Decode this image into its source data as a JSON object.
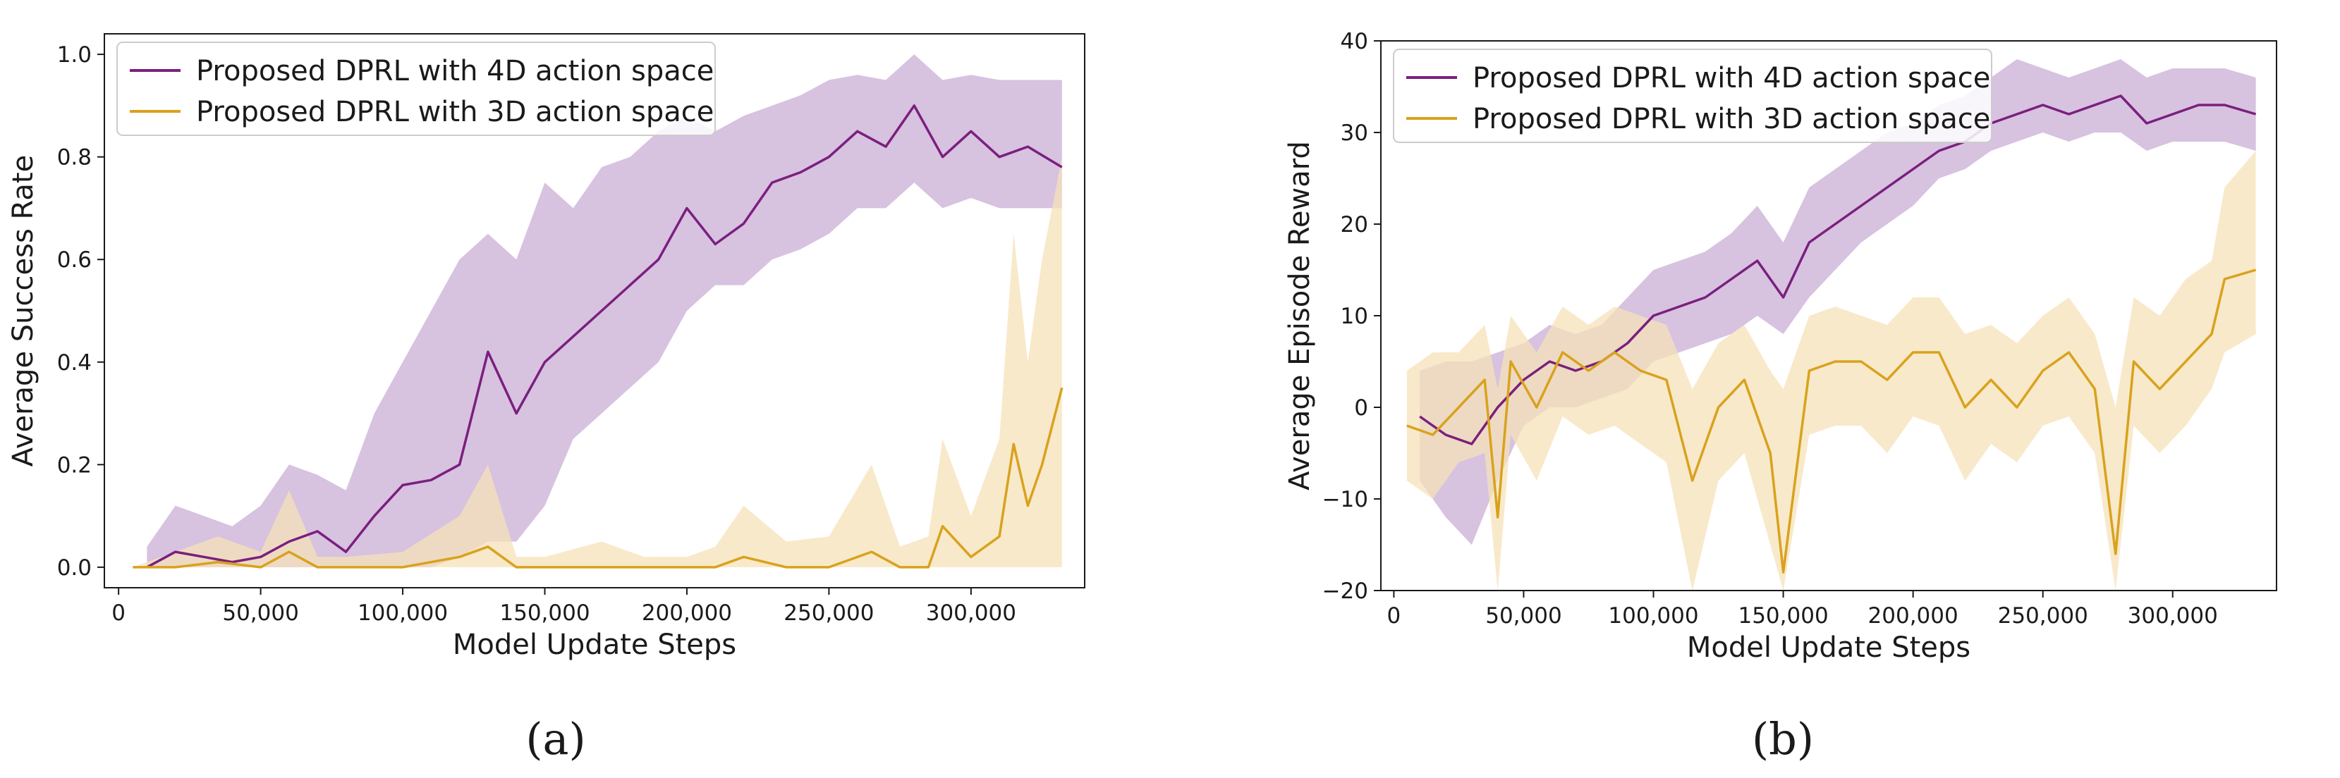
{
  "colors": {
    "purple": "#7b1f7e",
    "gold": "#d9a21d",
    "purple_band": "#c9aed6",
    "gold_band": "#f5e2b8"
  },
  "panels": [
    {
      "caption": "(a)"
    },
    {
      "caption": "(b)"
    }
  ],
  "chart_data": [
    {
      "type": "line",
      "title": "",
      "xlabel": "Model Update Steps",
      "ylabel": "Average Success Rate",
      "xlim": [
        -5000,
        340000
      ],
      "ylim": [
        -0.04,
        1.04
      ],
      "xticks": [
        0,
        50000,
        100000,
        150000,
        200000,
        250000,
        300000
      ],
      "xtick_labels": [
        "0",
        "50,000",
        "100,000",
        "150,000",
        "200,000",
        "250,000",
        "300,000"
      ],
      "yticks": [
        0.0,
        0.2,
        0.4,
        0.6,
        0.8,
        1.0
      ],
      "ytick_labels": [
        "0.0",
        "0.2",
        "0.4",
        "0.6",
        "0.8",
        "1.0"
      ],
      "legend_position": "top-left",
      "series": [
        {
          "name": "Proposed DPRL with 4D action space",
          "color": "#7b1f7e",
          "x": [
            10000,
            20000,
            30000,
            40000,
            50000,
            60000,
            70000,
            80000,
            90000,
            100000,
            110000,
            120000,
            130000,
            140000,
            150000,
            160000,
            170000,
            180000,
            190000,
            200000,
            210000,
            220000,
            230000,
            240000,
            250000,
            260000,
            270000,
            280000,
            290000,
            300000,
            310000,
            320000,
            332000
          ],
          "y": [
            0.0,
            0.03,
            0.02,
            0.01,
            0.02,
            0.05,
            0.07,
            0.03,
            0.1,
            0.16,
            0.17,
            0.2,
            0.42,
            0.3,
            0.4,
            0.45,
            0.5,
            0.55,
            0.6,
            0.7,
            0.63,
            0.67,
            0.75,
            0.77,
            0.8,
            0.85,
            0.82,
            0.9,
            0.8,
            0.85,
            0.8,
            0.82,
            0.78
          ],
          "lower": [
            0.0,
            0.0,
            0.0,
            0.0,
            0.0,
            0.0,
            0.0,
            0.0,
            0.0,
            0.0,
            0.0,
            0.02,
            0.05,
            0.05,
            0.12,
            0.25,
            0.3,
            0.35,
            0.4,
            0.5,
            0.55,
            0.55,
            0.6,
            0.62,
            0.65,
            0.7,
            0.7,
            0.75,
            0.7,
            0.72,
            0.7,
            0.7,
            0.7
          ],
          "upper": [
            0.04,
            0.12,
            0.1,
            0.08,
            0.12,
            0.2,
            0.18,
            0.15,
            0.3,
            0.4,
            0.5,
            0.6,
            0.65,
            0.6,
            0.75,
            0.7,
            0.78,
            0.8,
            0.85,
            0.88,
            0.85,
            0.88,
            0.9,
            0.92,
            0.95,
            0.96,
            0.95,
            1.0,
            0.95,
            0.96,
            0.95,
            0.95,
            0.95
          ]
        },
        {
          "name": "Proposed DPRL with 3D action space",
          "color": "#d9a21d",
          "x": [
            5000,
            20000,
            35000,
            50000,
            60000,
            70000,
            80000,
            100000,
            120000,
            130000,
            140000,
            150000,
            170000,
            185000,
            200000,
            210000,
            220000,
            235000,
            250000,
            265000,
            275000,
            285000,
            290000,
            300000,
            310000,
            315000,
            320000,
            325000,
            332000
          ],
          "y": [
            0.0,
            0.0,
            0.01,
            0.0,
            0.03,
            0.0,
            0.0,
            0.0,
            0.02,
            0.04,
            0.0,
            0.0,
            0.0,
            0.0,
            0.0,
            0.0,
            0.02,
            0.0,
            0.0,
            0.03,
            0.0,
            0.0,
            0.08,
            0.02,
            0.06,
            0.24,
            0.12,
            0.2,
            0.35
          ],
          "lower": [
            0.0,
            0.0,
            0.0,
            0.0,
            0.0,
            0.0,
            0.0,
            0.0,
            0.0,
            0.0,
            0.0,
            0.0,
            0.0,
            0.0,
            0.0,
            0.0,
            0.0,
            0.0,
            0.0,
            0.0,
            0.0,
            0.0,
            0.0,
            0.0,
            0.0,
            0.0,
            0.0,
            0.0,
            0.0
          ],
          "upper": [
            0.0,
            0.03,
            0.06,
            0.03,
            0.15,
            0.02,
            0.02,
            0.03,
            0.1,
            0.2,
            0.02,
            0.02,
            0.05,
            0.02,
            0.02,
            0.04,
            0.12,
            0.05,
            0.06,
            0.2,
            0.04,
            0.06,
            0.25,
            0.1,
            0.25,
            0.65,
            0.4,
            0.6,
            0.8
          ]
        }
      ]
    },
    {
      "type": "line",
      "title": "",
      "xlabel": "Model Update Steps",
      "ylabel": "Average Episode Reward",
      "xlim": [
        -5000,
        340000
      ],
      "ylim": [
        -20,
        40
      ],
      "xticks": [
        0,
        50000,
        100000,
        150000,
        200000,
        250000,
        300000
      ],
      "xtick_labels": [
        "0",
        "50,000",
        "100,000",
        "150,000",
        "200,000",
        "250,000",
        "300,000"
      ],
      "yticks": [
        -20,
        -10,
        0,
        10,
        20,
        30,
        40
      ],
      "ytick_labels": [
        "−20",
        "−10",
        "0",
        "10",
        "20",
        "30",
        "40"
      ],
      "legend_position": "top-left",
      "series": [
        {
          "name": "Proposed DPRL with 4D action space",
          "color": "#7b1f7e",
          "x": [
            10000,
            20000,
            30000,
            40000,
            50000,
            60000,
            70000,
            80000,
            90000,
            100000,
            110000,
            120000,
            130000,
            140000,
            150000,
            160000,
            170000,
            180000,
            190000,
            200000,
            210000,
            220000,
            230000,
            240000,
            250000,
            260000,
            270000,
            280000,
            290000,
            300000,
            310000,
            320000,
            332000
          ],
          "y": [
            -1,
            -3,
            -4,
            0,
            3,
            5,
            4,
            5,
            7,
            10,
            11,
            12,
            14,
            16,
            12,
            18,
            20,
            22,
            24,
            26,
            28,
            29,
            31,
            32,
            33,
            32,
            33,
            34,
            31,
            32,
            33,
            33,
            32
          ],
          "lower": [
            -8,
            -12,
            -15,
            -8,
            -2,
            0,
            0,
            1,
            2,
            5,
            6,
            7,
            8,
            10,
            8,
            12,
            15,
            18,
            20,
            22,
            25,
            26,
            28,
            29,
            30,
            29,
            30,
            30,
            28,
            29,
            29,
            29,
            28
          ],
          "upper": [
            4,
            5,
            5,
            6,
            7,
            9,
            8,
            9,
            12,
            15,
            16,
            17,
            19,
            22,
            18,
            24,
            26,
            28,
            30,
            31,
            33,
            34,
            36,
            38,
            37,
            36,
            37,
            38,
            36,
            37,
            37,
            37,
            36
          ]
        },
        {
          "name": "Proposed DPRL with 3D action space",
          "color": "#d9a21d",
          "x": [
            5000,
            15000,
            25000,
            35000,
            40000,
            45000,
            55000,
            65000,
            75000,
            85000,
            95000,
            105000,
            115000,
            125000,
            135000,
            145000,
            150000,
            160000,
            170000,
            180000,
            190000,
            200000,
            210000,
            220000,
            230000,
            240000,
            250000,
            260000,
            270000,
            278000,
            285000,
            295000,
            305000,
            315000,
            320000,
            332000
          ],
          "y": [
            -2,
            -3,
            0,
            3,
            -12,
            5,
            0,
            6,
            4,
            6,
            4,
            3,
            -8,
            0,
            3,
            -5,
            -18,
            4,
            5,
            5,
            3,
            6,
            6,
            0,
            3,
            0,
            4,
            6,
            2,
            -16,
            5,
            2,
            5,
            8,
            14,
            15
          ],
          "lower": [
            -8,
            -10,
            -6,
            -5,
            -20,
            -3,
            -8,
            -1,
            -3,
            -2,
            -4,
            -6,
            -20,
            -8,
            -5,
            -15,
            -20,
            -3,
            -2,
            -2,
            -5,
            -1,
            -2,
            -8,
            -4,
            -6,
            -2,
            -1,
            -5,
            -20,
            -2,
            -5,
            -2,
            2,
            6,
            8
          ],
          "upper": [
            4,
            6,
            6,
            9,
            2,
            10,
            6,
            11,
            9,
            11,
            10,
            9,
            2,
            7,
            9,
            4,
            2,
            10,
            11,
            10,
            9,
            12,
            12,
            8,
            9,
            7,
            10,
            12,
            8,
            0,
            12,
            10,
            14,
            16,
            24,
            28
          ]
        }
      ]
    }
  ]
}
